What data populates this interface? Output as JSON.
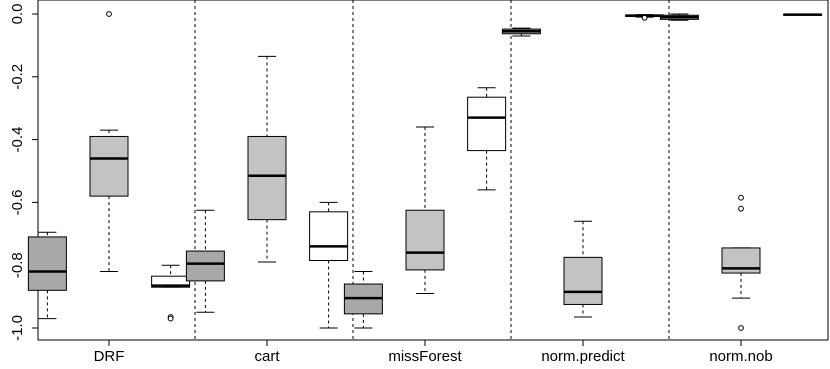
{
  "chart_data": {
    "type": "boxplot",
    "title": "",
    "xlabel": "",
    "ylabel": "",
    "ylim": [
      -1.03,
      0.02
    ],
    "yticks": [
      0.0,
      -0.2,
      -0.4,
      -0.6,
      -0.8,
      -1.0
    ],
    "ytick_labels": [
      "0.0",
      "-0.2",
      "-0.4",
      "-0.6",
      "-0.8",
      "-1.0"
    ],
    "grid": false,
    "legend": "none",
    "categories": [
      "DRF",
      "cart",
      "missForest",
      "norm.predict",
      "norm.nob"
    ],
    "box_colors": [
      "#a8a8a8",
      "#c3c3c3",
      "#ffffff"
    ],
    "groups": [
      {
        "name": "DRF",
        "boxes": [
          {
            "whisker_low": -0.97,
            "q1": -0.88,
            "median": -0.82,
            "q3": -0.71,
            "whisker_high": -0.695,
            "outliers": []
          },
          {
            "whisker_low": -0.82,
            "q1": -0.58,
            "median": -0.46,
            "q3": -0.39,
            "whisker_high": -0.37,
            "outliers": [
              0.0
            ]
          },
          {
            "whisker_low": -0.87,
            "q1": -0.87,
            "median": -0.865,
            "q3": -0.835,
            "whisker_high": -0.8,
            "outliers": [
              -0.965,
              -0.97
            ]
          }
        ]
      },
      {
        "name": "cart",
        "boxes": [
          {
            "whisker_low": -0.95,
            "q1": -0.85,
            "median": -0.795,
            "q3": -0.755,
            "whisker_high": -0.625,
            "outliers": []
          },
          {
            "whisker_low": -0.79,
            "q1": -0.655,
            "median": -0.515,
            "q3": -0.39,
            "whisker_high": -0.135,
            "outliers": []
          },
          {
            "whisker_low": -1.0,
            "q1": -0.785,
            "median": -0.74,
            "q3": -0.63,
            "whisker_high": -0.6,
            "outliers": []
          }
        ]
      },
      {
        "name": "missForest",
        "boxes": [
          {
            "whisker_low": -1.0,
            "q1": -0.955,
            "median": -0.905,
            "q3": -0.86,
            "whisker_high": -0.82,
            "outliers": []
          },
          {
            "whisker_low": -0.89,
            "q1": -0.815,
            "median": -0.76,
            "q3": -0.625,
            "whisker_high": -0.36,
            "outliers": []
          },
          {
            "whisker_low": -0.56,
            "q1": -0.435,
            "median": -0.33,
            "q3": -0.265,
            "whisker_high": -0.235,
            "outliers": []
          }
        ]
      },
      {
        "name": "norm.predict",
        "boxes": [
          {
            "whisker_low": -0.07,
            "q1": -0.063,
            "median": -0.055,
            "q3": -0.048,
            "whisker_high": -0.045,
            "outliers": []
          },
          {
            "whisker_low": -0.965,
            "q1": -0.925,
            "median": -0.885,
            "q3": -0.775,
            "whisker_high": -0.66,
            "outliers": []
          },
          {
            "whisker_low": -0.01,
            "q1": -0.008,
            "median": -0.005,
            "q3": -0.003,
            "whisker_high": -0.002,
            "outliers": [
              -0.012
            ]
          }
        ]
      },
      {
        "name": "norm.nob",
        "boxes": [
          {
            "whisker_low": -0.02,
            "q1": -0.017,
            "median": -0.01,
            "q3": -0.004,
            "whisker_high": 0.0,
            "outliers": []
          },
          {
            "whisker_low": -0.905,
            "q1": -0.825,
            "median": -0.81,
            "q3": -0.745,
            "whisker_high": -0.745,
            "outliers": [
              -0.585,
              -0.62,
              -1.0
            ]
          },
          {
            "whisker_low": -0.003,
            "q1": -0.003,
            "median": -0.002,
            "q3": -0.001,
            "whisker_high": -0.001,
            "outliers": []
          }
        ]
      }
    ]
  }
}
